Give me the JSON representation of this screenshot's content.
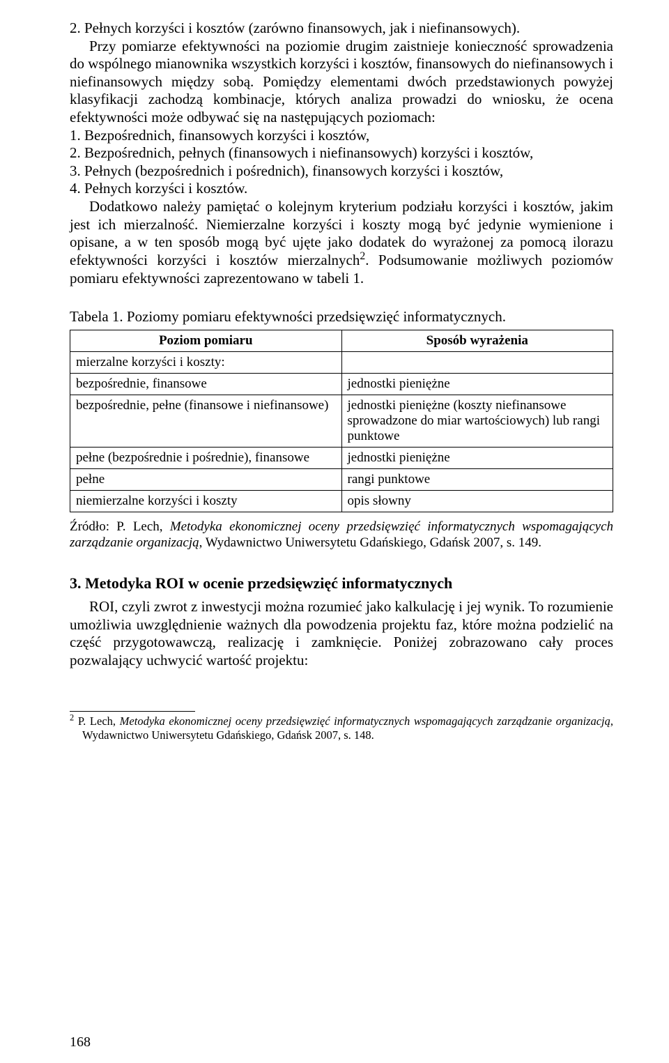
{
  "para1_item2": "2.  Pełnych korzyści i kosztów (zarówno finansowych, jak i niefinansowych).",
  "para2": "Przy pomiarze efektywności na poziomie drugim zaistnieje konieczność sprowadzenia do wspólnego mianownika wszystkich korzyści i kosztów, finansowych do niefinansowych i niefinansowych między sobą. Pomiędzy elementami dwóch przedstawionych powyżej klasyfikacji zachodzą kombinacje, których analiza prowadzi do wniosku, że ocena efektywności może odbywać się na następujących poziomach:",
  "list": {
    "1": "1.  Bezpośrednich, finansowych korzyści i kosztów,",
    "2": "2.  Bezpośrednich, pełnych (finansowych i niefinansowych) korzyści i kosztów,",
    "3": "3.  Pełnych (bezpośrednich i pośrednich), finansowych korzyści i kosztów,",
    "4": "4.  Pełnych korzyści i kosztów."
  },
  "para3_a": "Dodatkowo należy pamiętać o kolejnym kryterium podziału korzyści i kosztów, jakim jest ich mierzalność. Niemierzalne korzyści i koszty mogą być jedynie wymienione i opisane, a w ten sposób mogą być ujęte jako dodatek do wyrażonej za pomocą ilorazu efektywności korzyści i kosztów mierzalnych",
  "para3_sup": "2",
  "para3_b": ". Podsumowanie możliwych poziomów pomiaru efektywności zaprezentowano w tabeli 1.",
  "table_caption": "Tabela 1. Poziomy pomiaru efektywności przedsięwzięć informatycznych.",
  "table": {
    "headers": {
      "col1": "Poziom pomiaru",
      "col2": "Sposób wyrażenia"
    },
    "rows": {
      "r0": {
        "c1": "mierzalne korzyści i koszty:",
        "c2": ""
      },
      "r1": {
        "c1": "bezpośrednie, finansowe",
        "c2": "jednostki pieniężne"
      },
      "r2": {
        "c1": "bezpośrednie, pełne (finansowe i niefinansowe)",
        "c2": "jednostki pieniężne (koszty niefinansowe sprowadzone do miar wartościowych) lub rangi punktowe"
      },
      "r3": {
        "c1": "pełne (bezpośrednie i pośrednie), finansowe",
        "c2": "jednostki pieniężne"
      },
      "r4": {
        "c1": "pełne",
        "c2": "rangi punktowe"
      },
      "r5": {
        "c1": "niemierzalne korzyści i koszty",
        "c2": "opis słowny"
      }
    }
  },
  "source_prefix": "Źródło: P. Lech, ",
  "source_italic": "Metodyka ekonomicznej oceny przedsięwzięć informatycznych wspomagających zarządzanie organizacją",
  "source_suffix": ", Wydawnictwo Uniwersytetu Gdańskiego, Gdańsk 2007, s. 149.",
  "section_heading": "3. Metodyka ROI w ocenie przedsięwzięć informatycznych",
  "para4": "ROI, czyli zwrot z inwestycji można rozumieć jako kalkulację i jej wynik. To rozumienie umożliwia uwzględnienie ważnych dla powodzenia projektu faz, które można podzielić na część przygotowawczą, realizację i zamknięcie. Poniżej zobrazowano cały proces pozwalający uchwycić wartość projektu:",
  "footnote_num": "2",
  "footnote_a": "  P. Lech, ",
  "footnote_italic": "Metodyka ekonomicznej oceny przedsięwzięć informatycznych wspomagających zarządzanie organizacją",
  "footnote_b": ", Wydawnictwo Uniwersytetu Gdańskiego, Gdańsk 2007, s. 148.",
  "page_number": "168"
}
